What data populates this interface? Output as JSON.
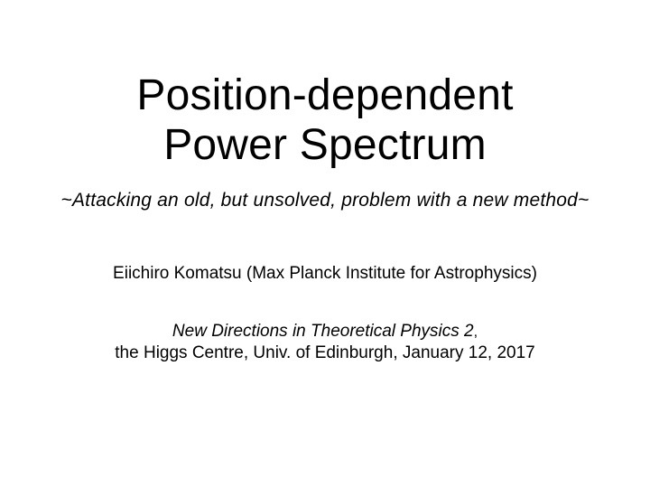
{
  "title_line1": "Position-dependent",
  "title_line2": "Power Spectrum",
  "subtitle": "~Attacking an old, but unsolved, problem with a new method~",
  "author": "Eiichiro Komatsu (Max Planck Institute for Astrophysics)",
  "event": "New Directions in Theoretical Physics 2",
  "event_suffix": ",",
  "venue": "the Higgs Centre, Univ. of Edinburgh, January 12, 2017",
  "colors": {
    "background": "#ffffff",
    "text": "#000000"
  },
  "typography": {
    "title_fontsize": 48,
    "subtitle_fontsize": 21,
    "body_fontsize": 19,
    "font_weight": 300,
    "font_family": "Helvetica Neue"
  }
}
